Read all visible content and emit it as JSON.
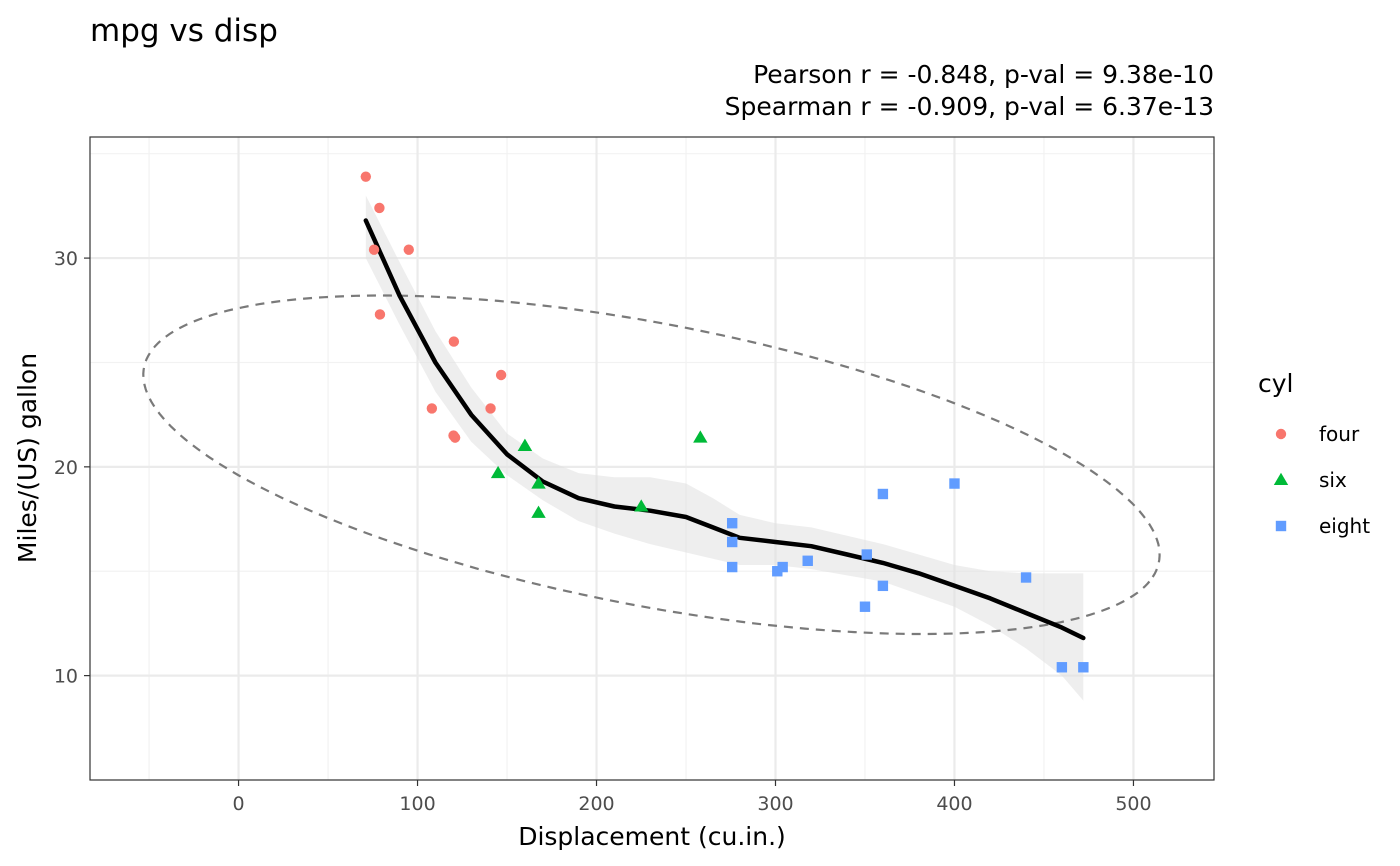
{
  "chart_data": {
    "type": "scatter",
    "title": "mpg vs disp",
    "subtitle_lines": [
      "Pearson r = -0.848, p-val = 9.38e-10",
      "Spearman r = -0.909, p-val = 6.37e-13"
    ],
    "xlabel": "Displacement (cu.in.)",
    "ylabel": "Miles/(US) gallon",
    "xlim": [
      -83,
      545
    ],
    "ylim": [
      5,
      35.8
    ],
    "x_ticks": [
      0,
      100,
      200,
      300,
      400,
      500
    ],
    "y_ticks": [
      10,
      20,
      30
    ],
    "grid": true,
    "legend": {
      "title": "cyl",
      "position": "right",
      "entries": [
        {
          "label": "four",
          "color": "#F8766D",
          "shape": "circle"
        },
        {
          "label": "six",
          "color": "#00BA38",
          "shape": "triangle"
        },
        {
          "label": "eight",
          "color": "#619CFF",
          "shape": "square"
        }
      ]
    },
    "series": [
      {
        "name": "four",
        "color": "#F8766D",
        "shape": "circle",
        "points": [
          [
            71.1,
            33.9
          ],
          [
            75.7,
            30.4
          ],
          [
            78.7,
            32.4
          ],
          [
            79.0,
            27.3
          ],
          [
            95.1,
            30.4
          ],
          [
            108.0,
            22.8
          ],
          [
            120.1,
            21.5
          ],
          [
            120.3,
            26.0
          ],
          [
            121.0,
            21.4
          ],
          [
            140.8,
            22.8
          ],
          [
            146.7,
            24.4
          ]
        ]
      },
      {
        "name": "six",
        "color": "#00BA38",
        "shape": "triangle",
        "points": [
          [
            145.0,
            19.7
          ],
          [
            160.0,
            21.0
          ],
          [
            160.0,
            21.0
          ],
          [
            167.6,
            19.2
          ],
          [
            167.6,
            17.8
          ],
          [
            225.0,
            18.1
          ],
          [
            258.0,
            21.4
          ]
        ]
      },
      {
        "name": "eight",
        "color": "#619CFF",
        "shape": "square",
        "points": [
          [
            275.8,
            16.4
          ],
          [
            275.8,
            17.3
          ],
          [
            275.8,
            15.2
          ],
          [
            301.0,
            15.0
          ],
          [
            304.0,
            15.2
          ],
          [
            318.0,
            15.5
          ],
          [
            350.0,
            13.3
          ],
          [
            351.0,
            15.8
          ],
          [
            360.0,
            18.7
          ],
          [
            360.0,
            14.3
          ],
          [
            400.0,
            19.2
          ],
          [
            440.0,
            14.7
          ],
          [
            460.0,
            10.4
          ],
          [
            472.0,
            10.4
          ]
        ]
      }
    ],
    "smooth_line": [
      [
        71.1,
        31.8
      ],
      [
        90,
        28.2
      ],
      [
        110,
        25.0
      ],
      [
        130,
        22.5
      ],
      [
        150,
        20.6
      ],
      [
        170,
        19.3
      ],
      [
        190,
        18.5
      ],
      [
        210,
        18.1
      ],
      [
        230,
        17.9
      ],
      [
        250,
        17.6
      ],
      [
        265,
        17.1
      ],
      [
        280,
        16.6
      ],
      [
        300,
        16.4
      ],
      [
        320,
        16.2
      ],
      [
        340,
        15.8
      ],
      [
        360,
        15.4
      ],
      [
        380,
        14.9
      ],
      [
        400,
        14.3
      ],
      [
        420,
        13.7
      ],
      [
        440,
        13.0
      ],
      [
        460,
        12.3
      ],
      [
        472,
        11.8
      ]
    ],
    "smooth_band_upper": [
      [
        71.1,
        33.0
      ],
      [
        90,
        29.8
      ],
      [
        110,
        26.5
      ],
      [
        130,
        23.8
      ],
      [
        150,
        21.6
      ],
      [
        170,
        20.4
      ],
      [
        190,
        19.7
      ],
      [
        210,
        19.5
      ],
      [
        230,
        19.5
      ],
      [
        250,
        19.2
      ],
      [
        265,
        18.5
      ],
      [
        280,
        17.7
      ],
      [
        300,
        17.3
      ],
      [
        320,
        17.1
      ],
      [
        340,
        16.7
      ],
      [
        360,
        16.3
      ],
      [
        380,
        15.8
      ],
      [
        400,
        15.3
      ],
      [
        420,
        15.0
      ],
      [
        440,
        14.9
      ],
      [
        460,
        14.9
      ],
      [
        472,
        14.9
      ]
    ],
    "smooth_band_lower": [
      [
        71.1,
        30.0
      ],
      [
        90,
        26.8
      ],
      [
        110,
        23.6
      ],
      [
        130,
        21.2
      ],
      [
        150,
        19.6
      ],
      [
        170,
        18.4
      ],
      [
        190,
        17.4
      ],
      [
        210,
        16.8
      ],
      [
        230,
        16.3
      ],
      [
        250,
        15.9
      ],
      [
        265,
        15.6
      ],
      [
        280,
        15.3
      ],
      [
        300,
        15.3
      ],
      [
        320,
        15.1
      ],
      [
        340,
        14.8
      ],
      [
        360,
        14.5
      ],
      [
        380,
        13.9
      ],
      [
        400,
        13.3
      ],
      [
        420,
        12.4
      ],
      [
        440,
        11.3
      ],
      [
        460,
        10.0
      ],
      [
        472,
        8.8
      ]
    ],
    "ellipse": {
      "center": [
        230.7,
        20.1
      ],
      "semi_axes": [
        300,
        6.5
      ],
      "rotation_deg": -21
    }
  }
}
